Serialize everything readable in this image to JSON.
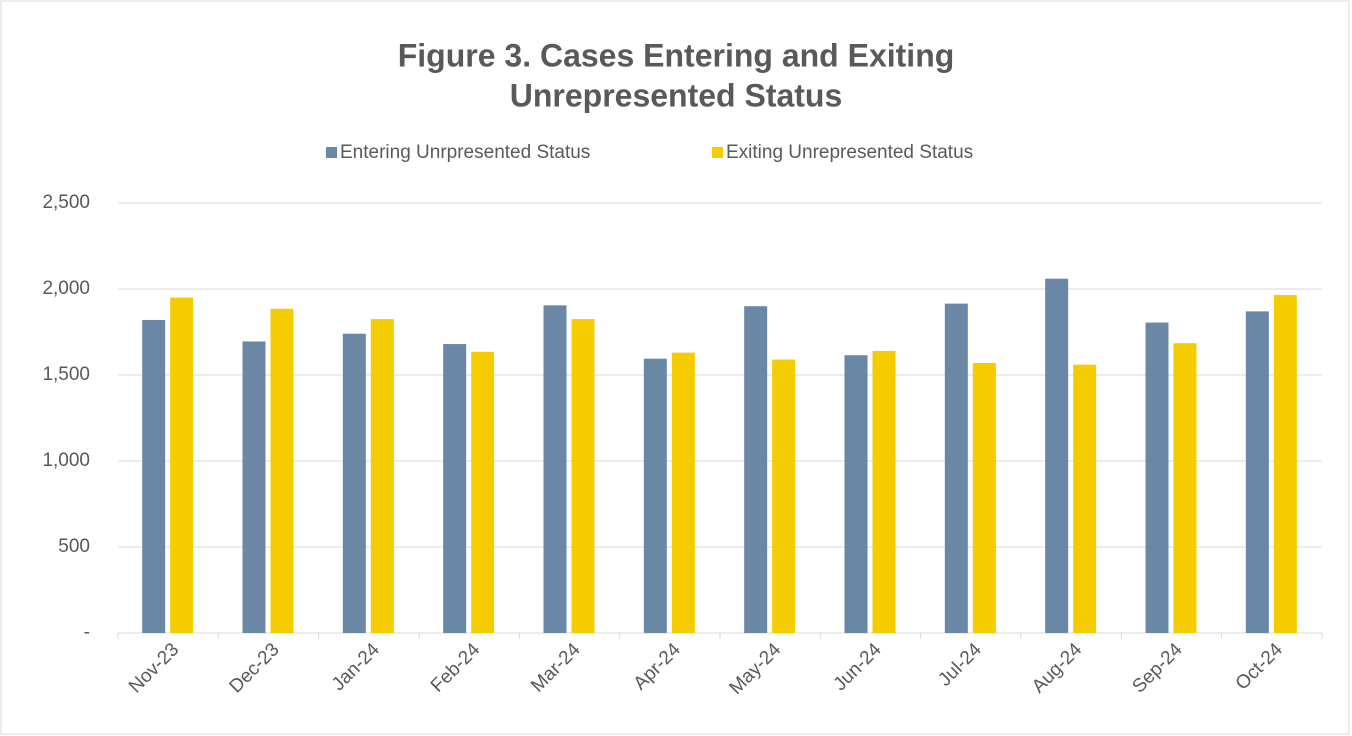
{
  "chart_data": {
    "type": "bar",
    "title": [
      "Figure 3. Cases Entering and Exiting",
      "Unrepresented Status"
    ],
    "categories": [
      "Nov-23",
      "Dec-23",
      "Jan-24",
      "Feb-24",
      "Mar-24",
      "Apr-24",
      "May-24",
      "Jun-24",
      "Jul-24",
      "Aug-24",
      "Sep-24",
      "Oct-24"
    ],
    "series": [
      {
        "name": "Entering Unrpresented Status",
        "color": "#6a88a6",
        "values": [
          1820,
          1695,
          1740,
          1680,
          1905,
          1595,
          1900,
          1615,
          1915,
          2060,
          1805,
          1870
        ]
      },
      {
        "name": "Exiting Unrepresented Status",
        "color": "#f5cc00",
        "values": [
          1950,
          1885,
          1825,
          1635,
          1825,
          1630,
          1590,
          1640,
          1570,
          1560,
          1685,
          1965
        ]
      }
    ],
    "ylim": [
      0,
      2500
    ],
    "yticks": [
      {
        "value": 0,
        "label": "-"
      },
      500,
      {
        "value": 1000,
        "label": "1,000"
      },
      {
        "value": 1500,
        "label": "1,500"
      },
      {
        "value": 2000,
        "label": "2,000"
      },
      {
        "value": 2500,
        "label": "2,500"
      }
    ],
    "grid": true,
    "legend": "top"
  }
}
